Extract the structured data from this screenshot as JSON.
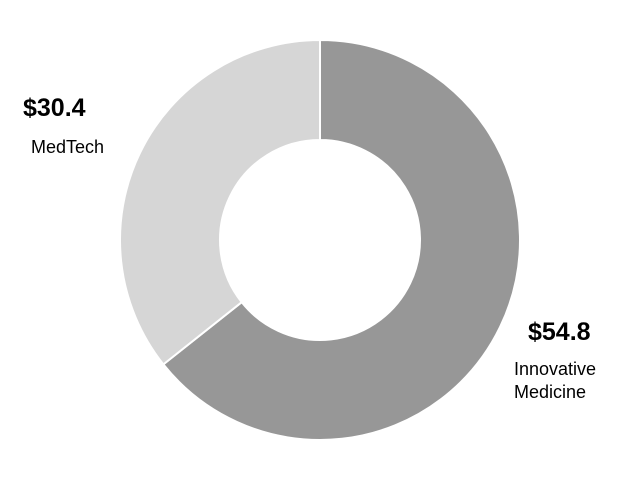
{
  "chart_data": {
    "type": "pie",
    "donut": true,
    "categories": [
      "Innovative Medicine",
      "MedTech"
    ],
    "values": [
      54.8,
      30.4
    ],
    "value_labels": [
      "$54.8",
      "$30.4"
    ],
    "colors": [
      "#979797",
      "#d6d6d6"
    ],
    "title": "",
    "legend": "none"
  }
}
